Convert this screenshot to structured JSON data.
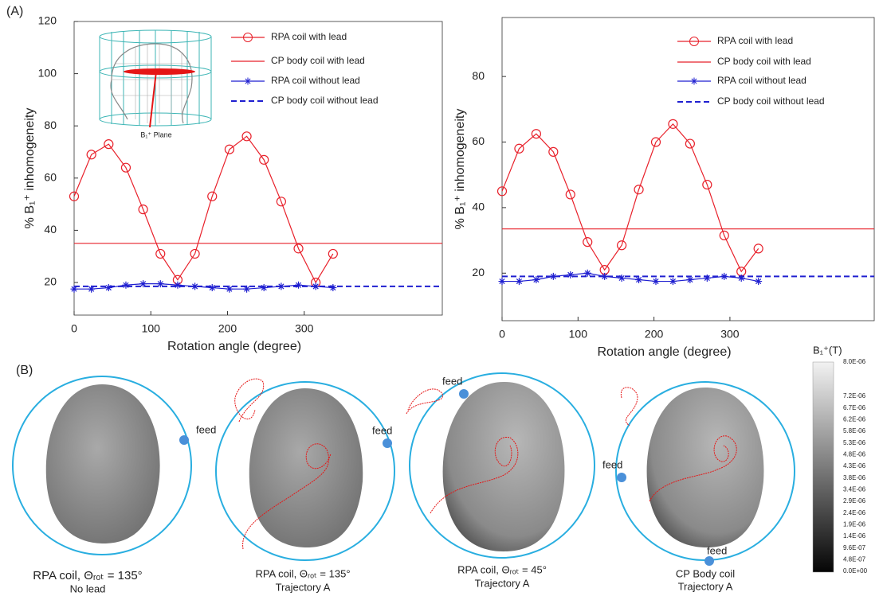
{
  "panel_a_label": "(A)",
  "inset_label": "B₁⁺ Plane",
  "chart_data": [
    {
      "type": "line",
      "xlabel": "Rotation angle (degree)",
      "ylabel": "% B₁⁺ inhomogeneity",
      "xlim": [
        0,
        480
      ],
      "ylim": [
        7.5,
        120
      ],
      "xticks": [
        0,
        100,
        200,
        300
      ],
      "yticks": [
        20,
        40,
        60,
        80,
        100,
        120
      ],
      "x": [
        0,
        22.5,
        45,
        67.5,
        90,
        112.5,
        135,
        157.5,
        180,
        202.5,
        225,
        247.5,
        270,
        292.5,
        315,
        337.5
      ],
      "series": [
        {
          "name": "RPA coil with lead",
          "color": "#e8202a",
          "marker": "circle",
          "dash": false,
          "values": [
            53,
            69,
            73,
            64,
            48,
            31,
            21,
            31,
            53,
            71,
            76,
            67,
            51,
            33,
            20,
            31
          ]
        },
        {
          "name": "CP body coil with lead",
          "color": "#e8202a",
          "marker": "none",
          "dash": false,
          "x": [
            0,
            480
          ],
          "values": [
            35,
            35
          ]
        },
        {
          "name": "RPA coil without lead",
          "color": "#1f1fd0",
          "marker": "star",
          "dash": false,
          "values": [
            17.5,
            17.5,
            18,
            19,
            19.5,
            19.5,
            19,
            18.5,
            18,
            17.5,
            17.5,
            18,
            18.5,
            19,
            18.5,
            18
          ]
        },
        {
          "name": "CP body coil without lead",
          "color": "#1f1fd0",
          "marker": "none",
          "dash": true,
          "x": [
            0,
            480
          ],
          "values": [
            18.5,
            18.5
          ]
        }
      ]
    },
    {
      "type": "line",
      "xlabel": "Rotation angle (degree)",
      "ylabel": "% B₁⁺ inhomogeneity",
      "xlim": [
        0,
        490
      ],
      "ylim": [
        5.5,
        98
      ],
      "xticks": [
        0,
        100,
        200,
        300
      ],
      "yticks": [
        20,
        40,
        60,
        80
      ],
      "x": [
        0,
        22.5,
        45,
        67.5,
        90,
        112.5,
        135,
        157.5,
        180,
        202.5,
        225,
        247.5,
        270,
        292.5,
        315,
        337.5
      ],
      "series": [
        {
          "name": "RPA coil with lead",
          "color": "#e8202a",
          "marker": "circle",
          "dash": false,
          "values": [
            45,
            58,
            62.5,
            57,
            44,
            29.5,
            21,
            28.5,
            45.5,
            60,
            65.5,
            59.5,
            47,
            31.5,
            20.5,
            27.5
          ]
        },
        {
          "name": "CP body coil with lead",
          "color": "#e8202a",
          "marker": "none",
          "dash": false,
          "x": [
            0,
            490
          ],
          "values": [
            33.5,
            33.5
          ]
        },
        {
          "name": "RPA coil without lead",
          "color": "#1f1fd0",
          "marker": "star",
          "dash": false,
          "values": [
            17.5,
            17.5,
            18,
            19,
            19.5,
            20,
            19,
            18.5,
            18,
            17.5,
            17.5,
            18,
            18.5,
            19,
            18.5,
            17.5
          ]
        },
        {
          "name": "CP body coil without lead",
          "color": "#1f1fd0",
          "marker": "none",
          "dash": true,
          "x": [
            0,
            490
          ],
          "values": [
            19,
            19
          ]
        }
      ]
    }
  ],
  "panel_b": {
    "label": "(B)",
    "feeds": [
      "feed",
      "feed",
      "feed",
      "feed",
      "feed"
    ],
    "captions": [
      [
        "RPA coil, Θᵣₒₜ = 135°",
        "No lead"
      ],
      [
        "RPA coil,   Θᵣₒₜ = 135°",
        "Trajectory A"
      ],
      [
        "RPA coil,  Θᵣₒₜ = 45°",
        "Trajectory A"
      ],
      [
        "CP Body coil",
        "Trajectory A"
      ]
    ],
    "colorbar": {
      "title": "B₁⁺(T)",
      "labels": [
        "8.0E-06",
        "7.2E-06",
        "6.7E-06",
        "6.2E-06",
        "5.8E-06",
        "5.3E-06",
        "4.8E-06",
        "4.3E-06",
        "3.8E-06",
        "3.4E-06",
        "2.9E-06",
        "2.4E-06",
        "1.9E-06",
        "1.4E-06",
        "9.6E-07",
        "4.8E-07",
        "0.0E+00"
      ]
    }
  }
}
